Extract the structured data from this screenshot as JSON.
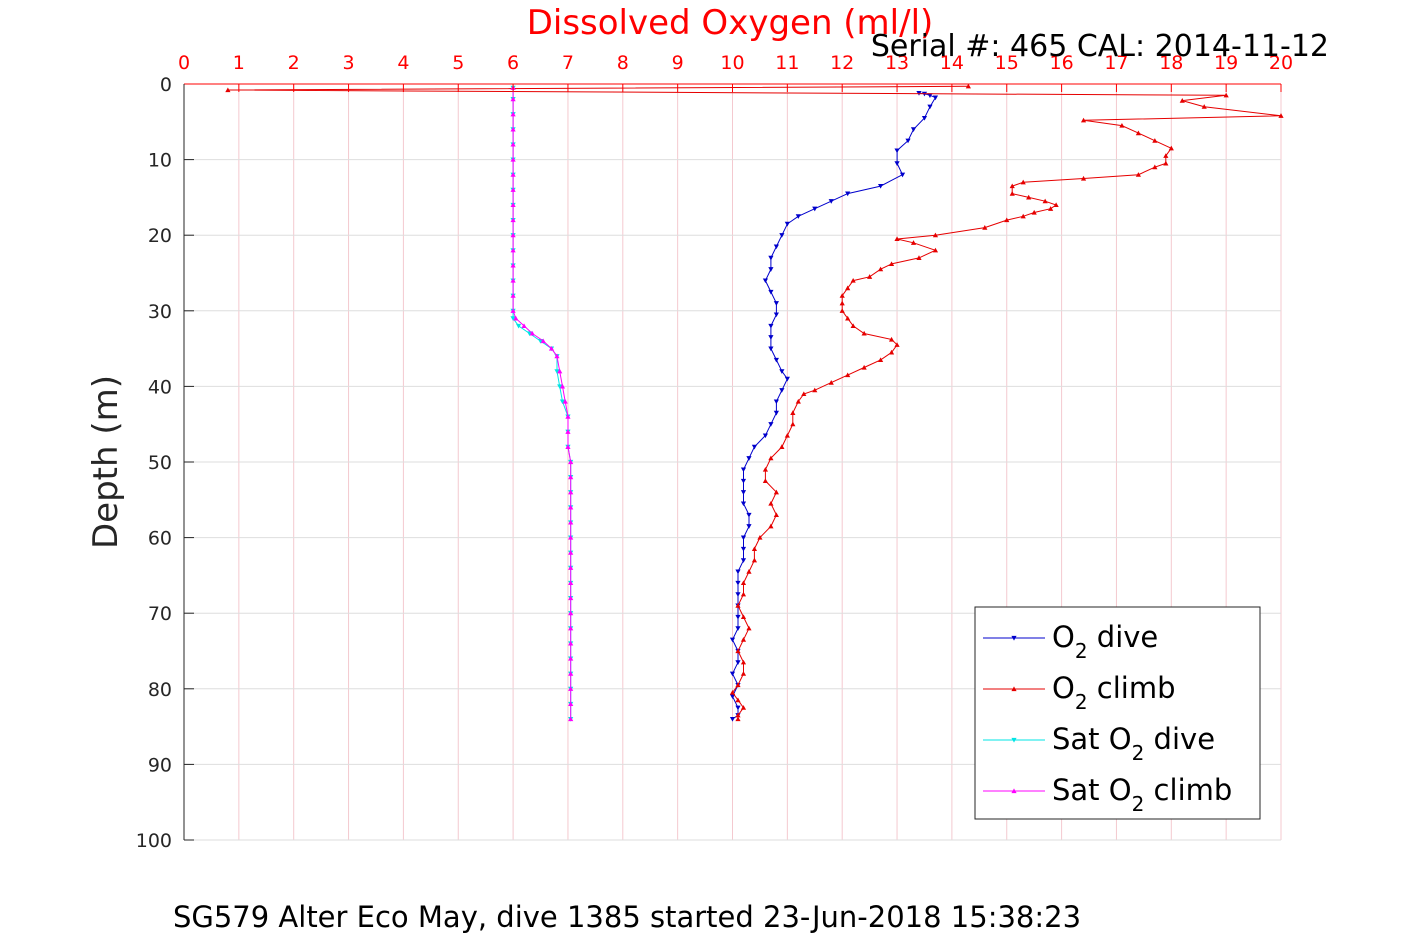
{
  "chart_data": {
    "type": "line",
    "title": "Dissolved Oxygen (ml/l)",
    "subtitle": "Serial #: 465  CAL: 2014-11-12",
    "ylabel": "Depth (m)",
    "caption": "SG579 Alter Eco May, dive 1385 started 23-Jun-2018 15:38:23",
    "xlim": [
      0,
      20
    ],
    "ylim": [
      0,
      100
    ],
    "y_reversed": true,
    "x_axis_position": "top",
    "grid": true,
    "legend_position": "bottom-right",
    "x_ticks": [
      "0",
      "1",
      "2",
      "3",
      "4",
      "5",
      "6",
      "7",
      "8",
      "9",
      "10",
      "11",
      "12",
      "13",
      "14",
      "15",
      "16",
      "17",
      "18",
      "19",
      "20"
    ],
    "y_ticks": [
      "0",
      "10",
      "20",
      "30",
      "40",
      "50",
      "60",
      "70",
      "80",
      "90",
      "100"
    ],
    "series": [
      {
        "name_main": "O",
        "name_sub": "2",
        "name_rest": " dive",
        "color": "#0000cc",
        "marker": "down-triangle",
        "points": [
          [
            13.4,
            1.2
          ],
          [
            13.5,
            1.3
          ],
          [
            13.6,
            1.5
          ],
          [
            13.7,
            1.8
          ],
          [
            13.6,
            3.0
          ],
          [
            13.5,
            4.5
          ],
          [
            13.3,
            6.0
          ],
          [
            13.2,
            7.5
          ],
          [
            13.0,
            8.8
          ],
          [
            13.0,
            10.5
          ],
          [
            13.1,
            12.0
          ],
          [
            12.7,
            13.5
          ],
          [
            12.1,
            14.5
          ],
          [
            11.8,
            15.5
          ],
          [
            11.5,
            16.5
          ],
          [
            11.2,
            17.5
          ],
          [
            11.0,
            18.5
          ],
          [
            10.9,
            20.0
          ],
          [
            10.8,
            21.5
          ],
          [
            10.7,
            23.0
          ],
          [
            10.7,
            24.5
          ],
          [
            10.6,
            26.0
          ],
          [
            10.7,
            27.5
          ],
          [
            10.8,
            29.0
          ],
          [
            10.8,
            30.5
          ],
          [
            10.7,
            32.0
          ],
          [
            10.7,
            33.5
          ],
          [
            10.7,
            35.0
          ],
          [
            10.8,
            36.5
          ],
          [
            10.9,
            38.0
          ],
          [
            11.0,
            39.0
          ],
          [
            10.9,
            40.5
          ],
          [
            10.8,
            42.0
          ],
          [
            10.8,
            43.5
          ],
          [
            10.7,
            45.0
          ],
          [
            10.6,
            46.5
          ],
          [
            10.4,
            48.0
          ],
          [
            10.3,
            49.5
          ],
          [
            10.2,
            51.0
          ],
          [
            10.2,
            52.5
          ],
          [
            10.2,
            54.0
          ],
          [
            10.2,
            55.5
          ],
          [
            10.3,
            57.0
          ],
          [
            10.3,
            58.5
          ],
          [
            10.2,
            60.0
          ],
          [
            10.2,
            61.5
          ],
          [
            10.2,
            63.0
          ],
          [
            10.1,
            64.5
          ],
          [
            10.1,
            66.0
          ],
          [
            10.1,
            67.5
          ],
          [
            10.1,
            69.0
          ],
          [
            10.1,
            70.5
          ],
          [
            10.1,
            72.0
          ],
          [
            10.0,
            73.5
          ],
          [
            10.1,
            75.0
          ],
          [
            10.1,
            76.5
          ],
          [
            10.0,
            78.0
          ],
          [
            10.1,
            79.5
          ],
          [
            10.0,
            81.0
          ],
          [
            10.1,
            82.5
          ],
          [
            10.1,
            83.5
          ],
          [
            10.0,
            84.0
          ]
        ]
      },
      {
        "name_main": "O",
        "name_sub": "2",
        "name_rest": " climb",
        "color": "#e60000",
        "marker": "up-triangle",
        "points": [
          [
            10.1,
            84.0
          ],
          [
            10.1,
            83.5
          ],
          [
            10.2,
            82.5
          ],
          [
            10.1,
            81.5
          ],
          [
            10.0,
            80.5
          ],
          [
            10.1,
            79.5
          ],
          [
            10.2,
            78.0
          ],
          [
            10.2,
            76.5
          ],
          [
            10.1,
            75.0
          ],
          [
            10.2,
            73.5
          ],
          [
            10.3,
            72.0
          ],
          [
            10.2,
            70.5
          ],
          [
            10.1,
            69.0
          ],
          [
            10.2,
            67.5
          ],
          [
            10.2,
            66.0
          ],
          [
            10.3,
            64.5
          ],
          [
            10.4,
            63.0
          ],
          [
            10.4,
            61.5
          ],
          [
            10.5,
            60.0
          ],
          [
            10.7,
            58.5
          ],
          [
            10.8,
            57.0
          ],
          [
            10.7,
            55.5
          ],
          [
            10.8,
            54.0
          ],
          [
            10.6,
            52.5
          ],
          [
            10.6,
            51.0
          ],
          [
            10.7,
            49.5
          ],
          [
            10.9,
            48.0
          ],
          [
            11.0,
            46.5
          ],
          [
            11.1,
            45.0
          ],
          [
            11.1,
            43.5
          ],
          [
            11.2,
            42.0
          ],
          [
            11.3,
            41.0
          ],
          [
            11.5,
            40.5
          ],
          [
            11.8,
            39.5
          ],
          [
            12.1,
            38.5
          ],
          [
            12.4,
            37.5
          ],
          [
            12.7,
            36.5
          ],
          [
            12.9,
            35.5
          ],
          [
            13.0,
            34.5
          ],
          [
            12.9,
            33.8
          ],
          [
            12.4,
            33.0
          ],
          [
            12.2,
            32.0
          ],
          [
            12.1,
            31.0
          ],
          [
            12.0,
            30.0
          ],
          [
            12.0,
            29.0
          ],
          [
            12.0,
            28.0
          ],
          [
            12.1,
            27.0
          ],
          [
            12.2,
            26.0
          ],
          [
            12.5,
            25.5
          ],
          [
            12.7,
            24.5
          ],
          [
            12.9,
            23.8
          ],
          [
            13.4,
            23.0
          ],
          [
            13.7,
            22.0
          ],
          [
            13.3,
            21.0
          ],
          [
            13.0,
            20.5
          ],
          [
            13.7,
            20.0
          ],
          [
            14.6,
            19.0
          ],
          [
            15.0,
            18.0
          ],
          [
            15.3,
            17.5
          ],
          [
            15.5,
            17.0
          ],
          [
            15.8,
            16.5
          ],
          [
            15.9,
            16.0
          ],
          [
            15.7,
            15.5
          ],
          [
            15.4,
            15.0
          ],
          [
            15.1,
            14.5
          ],
          [
            15.1,
            13.5
          ],
          [
            15.3,
            13.0
          ],
          [
            16.4,
            12.5
          ],
          [
            17.4,
            12.0
          ],
          [
            17.7,
            11.0
          ],
          [
            17.9,
            10.5
          ],
          [
            17.9,
            9.5
          ],
          [
            18.0,
            8.5
          ],
          [
            17.7,
            7.5
          ],
          [
            17.4,
            6.5
          ],
          [
            17.1,
            5.5
          ],
          [
            16.4,
            4.8
          ],
          [
            20.0,
            4.2
          ],
          [
            18.6,
            3.0
          ],
          [
            18.2,
            2.2
          ],
          [
            19.0,
            1.5
          ],
          [
            0.8,
            0.8
          ],
          [
            14.3,
            0.3
          ]
        ]
      },
      {
        "name_main": "Sat O",
        "name_sub": "2",
        "name_rest": " dive",
        "color": "#00e5e5",
        "marker": "down-triangle",
        "points": [
          [
            6.0,
            0.5
          ],
          [
            6.0,
            2.0
          ],
          [
            6.0,
            4.0
          ],
          [
            6.0,
            6.0
          ],
          [
            6.0,
            8.0
          ],
          [
            6.0,
            10.0
          ],
          [
            6.0,
            12.0
          ],
          [
            6.0,
            14.0
          ],
          [
            6.0,
            16.0
          ],
          [
            6.0,
            18.0
          ],
          [
            6.0,
            20.0
          ],
          [
            6.0,
            22.0
          ],
          [
            6.0,
            24.0
          ],
          [
            6.0,
            26.0
          ],
          [
            6.0,
            28.0
          ],
          [
            6.0,
            30.0
          ],
          [
            6.0,
            31.0
          ],
          [
            6.1,
            32.0
          ],
          [
            6.3,
            33.0
          ],
          [
            6.5,
            34.0
          ],
          [
            6.7,
            35.0
          ],
          [
            6.8,
            36.0
          ],
          [
            6.8,
            38.0
          ],
          [
            6.85,
            40.0
          ],
          [
            6.9,
            42.0
          ],
          [
            7.0,
            44.0
          ],
          [
            7.0,
            46.0
          ],
          [
            7.0,
            48.0
          ],
          [
            7.05,
            50.0
          ],
          [
            7.05,
            52.0
          ],
          [
            7.05,
            54.0
          ],
          [
            7.05,
            56.0
          ],
          [
            7.05,
            58.0
          ],
          [
            7.05,
            60.0
          ],
          [
            7.05,
            62.0
          ],
          [
            7.05,
            64.0
          ],
          [
            7.05,
            66.0
          ],
          [
            7.05,
            68.0
          ],
          [
            7.05,
            70.0
          ],
          [
            7.05,
            72.0
          ],
          [
            7.05,
            74.0
          ],
          [
            7.05,
            76.0
          ],
          [
            7.05,
            78.0
          ],
          [
            7.05,
            80.0
          ],
          [
            7.05,
            82.0
          ],
          [
            7.05,
            84.0
          ]
        ]
      },
      {
        "name_main": "Sat O",
        "name_sub": "2",
        "name_rest": " climb",
        "color": "#ff00ff",
        "marker": "up-triangle",
        "points": [
          [
            7.05,
            84.0
          ],
          [
            7.05,
            82.0
          ],
          [
            7.05,
            80.0
          ],
          [
            7.05,
            78.0
          ],
          [
            7.05,
            76.0
          ],
          [
            7.05,
            74.0
          ],
          [
            7.05,
            72.0
          ],
          [
            7.05,
            70.0
          ],
          [
            7.05,
            68.0
          ],
          [
            7.05,
            66.0
          ],
          [
            7.05,
            64.0
          ],
          [
            7.05,
            62.0
          ],
          [
            7.05,
            60.0
          ],
          [
            7.05,
            58.0
          ],
          [
            7.05,
            56.0
          ],
          [
            7.05,
            54.0
          ],
          [
            7.05,
            52.0
          ],
          [
            7.05,
            50.0
          ],
          [
            7.0,
            48.0
          ],
          [
            7.0,
            46.0
          ],
          [
            7.0,
            44.0
          ],
          [
            6.95,
            42.0
          ],
          [
            6.9,
            40.0
          ],
          [
            6.85,
            38.0
          ],
          [
            6.8,
            36.0
          ],
          [
            6.7,
            35.0
          ],
          [
            6.55,
            34.0
          ],
          [
            6.35,
            33.0
          ],
          [
            6.2,
            32.0
          ],
          [
            6.05,
            31.0
          ],
          [
            6.0,
            30.0
          ],
          [
            6.0,
            28.0
          ],
          [
            6.0,
            26.0
          ],
          [
            6.0,
            24.0
          ],
          [
            6.0,
            22.0
          ],
          [
            6.0,
            20.0
          ],
          [
            6.0,
            18.0
          ],
          [
            6.0,
            16.0
          ],
          [
            6.0,
            14.0
          ],
          [
            6.0,
            12.0
          ],
          [
            6.0,
            10.0
          ],
          [
            6.0,
            8.0
          ],
          [
            6.0,
            6.0
          ],
          [
            6.0,
            4.0
          ],
          [
            6.0,
            2.0
          ],
          [
            6.0,
            0.5
          ]
        ]
      }
    ]
  }
}
